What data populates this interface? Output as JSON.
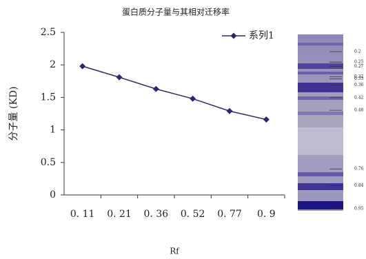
{
  "chart_data": {
    "type": "line",
    "title": "蛋白质分子量与其相对迁移率",
    "categories": [
      "0. 11",
      "0. 21",
      "0. 36",
      "0. 52",
      "0. 77",
      "0. 9"
    ],
    "series": [
      {
        "name": "系列1",
        "color": "#2e2670",
        "values": [
          1.98,
          1.81,
          1.63,
          1.48,
          1.29,
          1.16
        ]
      }
    ],
    "ylim": [
      0,
      2.5
    ],
    "yticks": [
      0,
      0.5,
      1,
      1.5,
      2,
      2.5
    ],
    "x_label": "Rf",
    "y_label": "分子量 (KD)",
    "legend": "top-right",
    "grid": false
  },
  "gel": {
    "labels": [
      0.2,
      0.25,
      0.27,
      0.32,
      0.33,
      0.36,
      0.42,
      0.48,
      0.76,
      0.84,
      0.95
    ]
  }
}
